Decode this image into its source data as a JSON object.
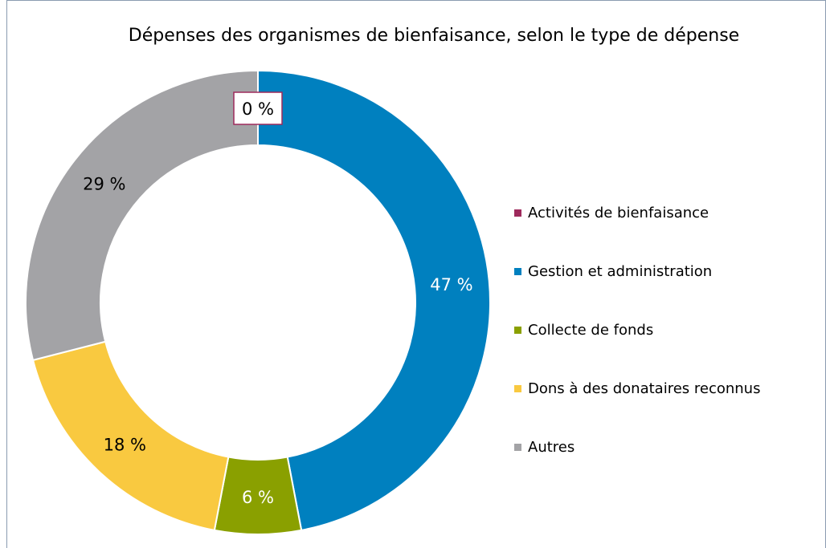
{
  "chart_data": {
    "type": "donut",
    "title": "Dépenses des organismes de bienfaisance, selon le type de dépense",
    "categories": [
      "Activités de bienfaisance",
      "Gestion et administration",
      "Collecte de fonds",
      "Dons à des donataires reconnus",
      "Autres"
    ],
    "values": [
      0,
      47,
      6,
      18,
      29
    ],
    "value_labels": [
      "0 %",
      "47 %",
      "6 %",
      "18 %",
      "29 %"
    ],
    "colors": [
      "#9e2a5c",
      "#0080bf",
      "#8aa000",
      "#f9c940",
      "#a3a3a6"
    ],
    "legend": "right"
  }
}
